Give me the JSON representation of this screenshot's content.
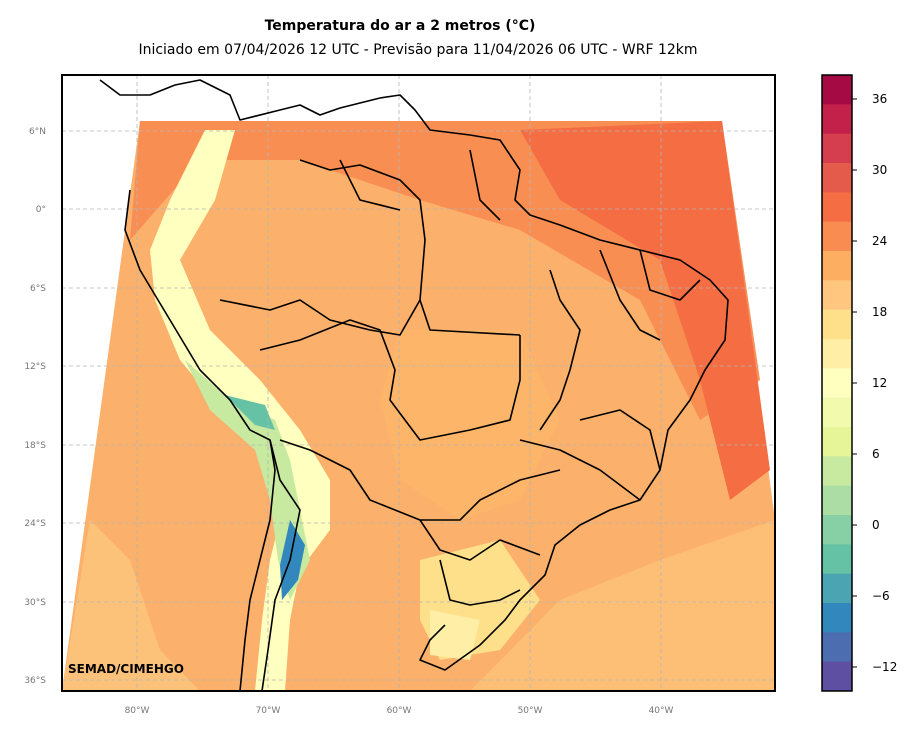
{
  "header": {
    "title": "Temperatura do ar a 2 metros (°C)",
    "subtitle": "Iniciado em 07/04/2026 12 UTC - Previsão para 11/04/2026 06 UTC - WRF 12km"
  },
  "credit": "SEMAD/CIMEHGO",
  "map": {
    "lat_labels": [
      "6°N",
      "0°",
      "6°S",
      "12°S",
      "18°S",
      "24°S",
      "30°S",
      "36°S"
    ],
    "lon_labels": [
      "80°W",
      "70°W",
      "60°W",
      "50°W",
      "40°W"
    ],
    "gridline_style": "dashed gray"
  },
  "colorbar": {
    "tick_labels": [
      "36",
      "30",
      "24",
      "18",
      "12",
      "6",
      "0",
      "−6",
      "−12"
    ],
    "colors": [
      "#a50a44",
      "#c3214a",
      "#d53e4f",
      "#e55b4b",
      "#f46d43",
      "#f88c51",
      "#fdae61",
      "#fec67e",
      "#fee08b",
      "#feeea6",
      "#ffffbf",
      "#f2faae",
      "#e6f598",
      "#c7e9a0",
      "#abdda4",
      "#87cfa4",
      "#66c2a5",
      "#4ba4b1",
      "#3288bd",
      "#4c6db0",
      "#5e4fa2"
    ]
  }
}
